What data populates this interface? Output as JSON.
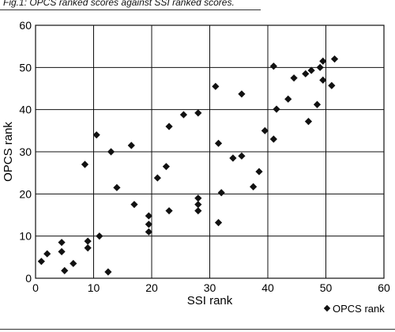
{
  "caption": "Fig.1: OPCS ranked scores against SSI ranked scores.",
  "chart_data": {
    "type": "scatter",
    "title": "",
    "xlabel": "SSI rank",
    "ylabel": "OPCS rank",
    "xlim": [
      0,
      60
    ],
    "ylim": [
      0,
      60
    ],
    "xticks": [
      "0",
      "10",
      "20",
      "30",
      "40",
      "50",
      "60"
    ],
    "yticks": [
      "0",
      "10",
      "20",
      "30",
      "40",
      "50",
      "60"
    ],
    "grid": true,
    "legend_position": "bottom-right",
    "series": [
      {
        "name": "OPCS rank",
        "marker": "diamond",
        "color": "#111111",
        "points": [
          [
            1,
            4
          ],
          [
            2,
            5.8
          ],
          [
            4.5,
            8.5
          ],
          [
            4.5,
            6.3
          ],
          [
            5,
            1.8
          ],
          [
            6.5,
            3.5
          ],
          [
            8.5,
            27
          ],
          [
            9,
            8.8
          ],
          [
            9,
            7.2
          ],
          [
            10.5,
            34
          ],
          [
            11,
            10
          ],
          [
            12.5,
            1.5
          ],
          [
            13,
            30
          ],
          [
            14,
            21.5
          ],
          [
            16.5,
            31.5
          ],
          [
            17,
            17.5
          ],
          [
            19.5,
            14.8
          ],
          [
            19.5,
            12.8
          ],
          [
            19.5,
            11
          ],
          [
            21,
            23.8
          ],
          [
            22.5,
            26.5
          ],
          [
            23,
            36
          ],
          [
            23,
            16
          ],
          [
            25.5,
            38.8
          ],
          [
            28,
            39.2
          ],
          [
            28,
            19
          ],
          [
            28,
            17.5
          ],
          [
            28,
            16
          ],
          [
            31,
            45.5
          ],
          [
            31.5,
            32
          ],
          [
            31.5,
            13.2
          ],
          [
            32,
            20.3
          ],
          [
            34,
            28.5
          ],
          [
            35.5,
            43.7
          ],
          [
            35.5,
            29
          ],
          [
            37.5,
            21.7
          ],
          [
            38.5,
            25.3
          ],
          [
            39.5,
            35
          ],
          [
            41,
            50.3
          ],
          [
            41,
            33
          ],
          [
            41.5,
            40.1
          ],
          [
            43.5,
            42.5
          ],
          [
            44.5,
            47.5
          ],
          [
            46.5,
            48.5
          ],
          [
            47,
            37.2
          ],
          [
            47.5,
            49.3
          ],
          [
            48.5,
            41.2
          ],
          [
            49,
            50
          ],
          [
            49.5,
            47
          ],
          [
            49.5,
            51.5
          ],
          [
            51,
            45.7
          ],
          [
            51.5,
            52
          ]
        ]
      }
    ]
  }
}
